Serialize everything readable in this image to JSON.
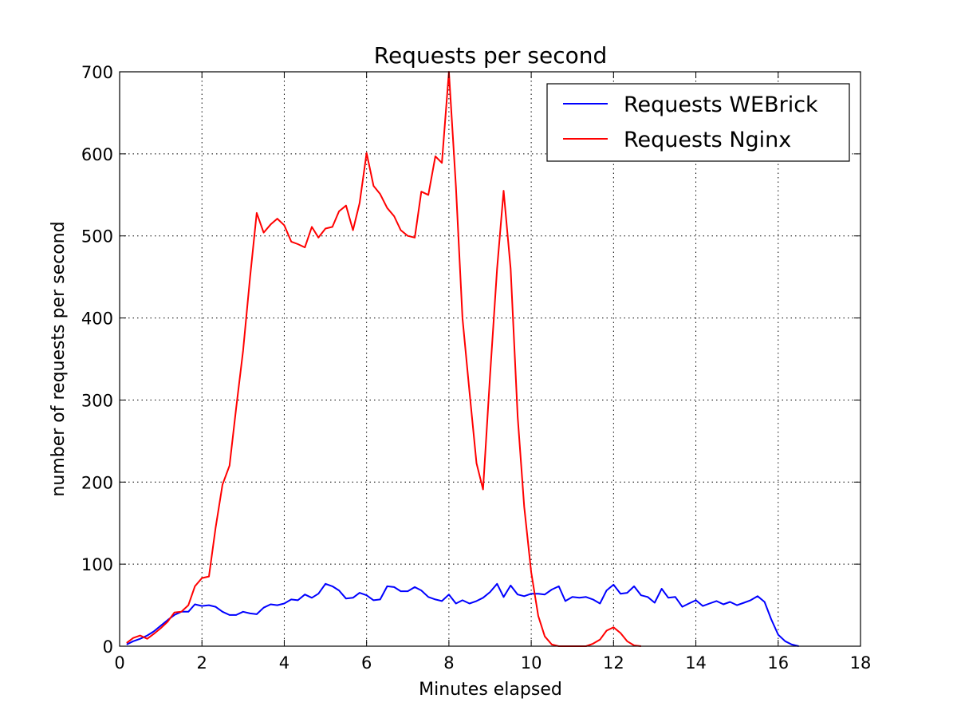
{
  "chart_data": {
    "type": "line",
    "title": "Requests per second",
    "xlabel": "Minutes elapsed",
    "ylabel": "number of requests per second",
    "xlim": [
      0,
      18
    ],
    "ylim": [
      0,
      700
    ],
    "xticks": [
      0,
      2,
      4,
      6,
      8,
      10,
      12,
      14,
      16,
      18
    ],
    "yticks": [
      0,
      100,
      200,
      300,
      400,
      500,
      600,
      700
    ],
    "grid": true,
    "legend_position": "top-right",
    "series": [
      {
        "name": "Requests WEBrick",
        "color": "#0000ff",
        "x": [
          0.17,
          0.33,
          0.5,
          0.67,
          0.83,
          1.0,
          1.17,
          1.33,
          1.5,
          1.67,
          1.83,
          2.0,
          2.17,
          2.33,
          2.5,
          2.67,
          2.83,
          3.0,
          3.17,
          3.33,
          3.5,
          3.67,
          3.83,
          4.0,
          4.17,
          4.33,
          4.5,
          4.67,
          4.83,
          5.0,
          5.17,
          5.33,
          5.5,
          5.67,
          5.83,
          6.0,
          6.17,
          6.33,
          6.5,
          6.67,
          6.83,
          7.0,
          7.17,
          7.33,
          7.5,
          7.67,
          7.83,
          8.0,
          8.17,
          8.33,
          8.5,
          8.67,
          8.83,
          9.0,
          9.17,
          9.33,
          9.5,
          9.67,
          9.83,
          10.0,
          10.17,
          10.33,
          10.5,
          10.67,
          10.83,
          11.0,
          11.17,
          11.33,
          11.5,
          11.67,
          11.83,
          12.0,
          12.17,
          12.33,
          12.5,
          12.67,
          12.83,
          13.0,
          13.17,
          13.33,
          13.5,
          13.67,
          13.83,
          14.0,
          14.17,
          14.33,
          14.5,
          14.67,
          14.83,
          15.0,
          15.17,
          15.33,
          15.5,
          15.67,
          15.83,
          16.0,
          16.17,
          16.33,
          16.5
        ],
        "values": [
          2,
          6,
          9,
          13,
          18,
          25,
          32,
          38,
          42,
          42,
          51,
          49,
          50,
          48,
          42,
          38,
          38,
          42,
          40,
          39,
          47,
          51,
          50,
          52,
          57,
          56,
          63,
          59,
          64,
          76,
          73,
          68,
          58,
          59,
          65,
          62,
          56,
          57,
          73,
          72,
          67,
          67,
          72,
          68,
          60,
          57,
          55,
          63,
          52,
          56,
          52,
          55,
          59,
          66,
          76,
          60,
          74,
          63,
          61,
          64,
          64,
          63,
          69,
          73,
          55,
          60,
          59,
          60,
          57,
          52,
          68,
          75,
          64,
          65,
          73,
          62,
          60,
          53,
          70,
          59,
          60,
          48,
          52,
          56,
          49,
          52,
          55,
          51,
          54,
          50,
          53,
          56,
          61,
          54,
          33,
          14,
          6,
          2,
          0
        ]
      },
      {
        "name": "Requests Nginx",
        "color": "#ff0000",
        "x": [
          0.17,
          0.33,
          0.5,
          0.67,
          0.83,
          1.0,
          1.17,
          1.33,
          1.5,
          1.67,
          1.83,
          2.0,
          2.17,
          2.33,
          2.5,
          2.67,
          2.83,
          3.0,
          3.17,
          3.33,
          3.5,
          3.67,
          3.83,
          4.0,
          4.17,
          4.33,
          4.5,
          4.67,
          4.83,
          5.0,
          5.17,
          5.33,
          5.5,
          5.67,
          5.83,
          6.0,
          6.17,
          6.33,
          6.5,
          6.67,
          6.83,
          7.0,
          7.17,
          7.33,
          7.5,
          7.67,
          7.83,
          8.0,
          8.17,
          8.33,
          8.5,
          8.67,
          8.83,
          9.0,
          9.17,
          9.33,
          9.5,
          9.67,
          9.83,
          10.0,
          10.17,
          10.33,
          10.5,
          10.67,
          10.83,
          11.0,
          11.17,
          11.33,
          11.5,
          11.67,
          11.83,
          12.0,
          12.17,
          12.33,
          12.5,
          12.67
        ],
        "values": [
          4,
          10,
          13,
          9,
          15,
          22,
          30,
          41,
          42,
          50,
          73,
          83,
          85,
          144,
          197,
          220,
          290,
          360,
          450,
          528,
          504,
          514,
          521,
          513,
          493,
          490,
          486,
          511,
          498,
          509,
          511,
          530,
          537,
          507,
          540,
          601,
          561,
          551,
          534,
          524,
          507,
          500,
          498,
          554,
          550,
          597,
          589,
          700,
          560,
          400,
          310,
          223,
          191,
          330,
          460,
          555,
          460,
          280,
          170,
          90,
          37,
          12,
          2,
          0,
          0,
          0,
          0,
          0,
          3,
          8,
          19,
          23,
          16,
          6,
          1,
          0
        ]
      }
    ]
  }
}
